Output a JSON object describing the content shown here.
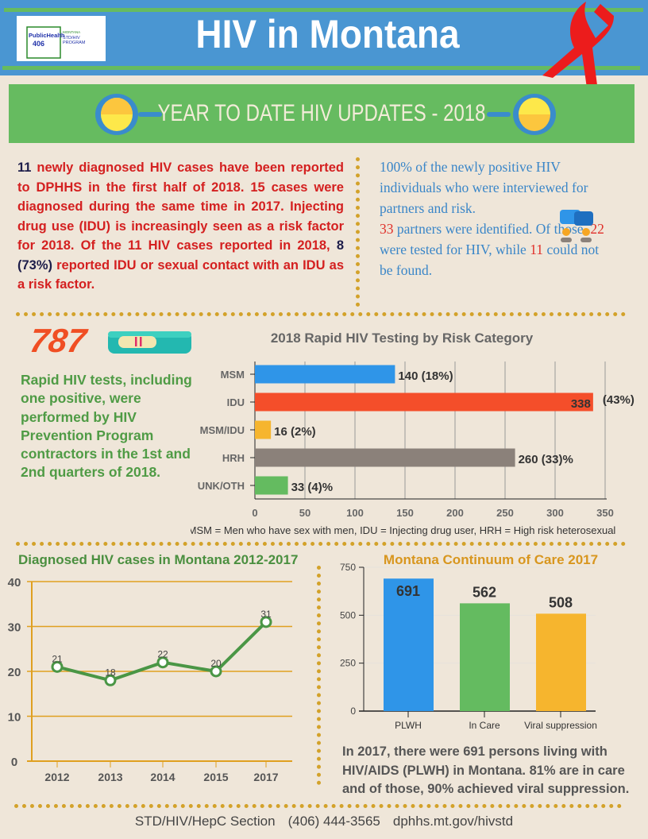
{
  "header": {
    "title": "HIV in Montana",
    "logo": {
      "text": "PublicHealth in the 406",
      "program": "MONTANA STD/HIV PROGRAM"
    },
    "ribbon_icon": "red-ribbon-icon"
  },
  "banner": {
    "title": "YEAR TO DATE HIV UPDATES - 2018"
  },
  "summary": {
    "n1": "11",
    "t1": " newly diagnosed HIV cases have been reported to DPHHS in the first half of 2018. 15 cases were diagnosed during the same time in 2017. Injecting drug use (IDU) is increasingly seen as a risk factor for 2018. Of the 11 HIV cases reported in 2018, ",
    "n2": "8 (73%)",
    "t2": " reported IDU or sexual contact with an IDU as a risk factor."
  },
  "partners": {
    "t1": "100% of the newly positive HIV individuals who were interviewed for partners and risk.",
    "n1": "33",
    "t2": " partners were identified. Of those, ",
    "n2": "22",
    "t3": " were tested for HIV, while ",
    "n3": "11",
    "t4": " could not be found."
  },
  "rapid": {
    "count": "787",
    "text": "Rapid HIV tests, including one positive, were performed by HIV Prevention Program contractors in the 1st and 2nd quarters of 2018.",
    "icon": "test-kit-icon"
  },
  "chart_data": [
    {
      "type": "bar",
      "orientation": "horizontal",
      "title": "2018 Rapid HIV Testing by Risk Category",
      "categories": [
        "MSM",
        "IDU",
        "MSM/IDU",
        "HRH",
        "UNK/OTH"
      ],
      "values": [
        140,
        338,
        16,
        260,
        33
      ],
      "labels": [
        "140 (18%)",
        "338",
        "16 (2%)",
        "260  (33)%",
        "33 (4)%"
      ],
      "extra_labels": [
        "",
        "(43%)",
        "",
        "",
        ""
      ],
      "colors": [
        "#2f95e8",
        "#f44e2a",
        "#f6b52e",
        "#8b817a",
        "#64bb60"
      ],
      "xlim": [
        0,
        350
      ],
      "xticks": [
        0,
        50,
        100,
        150,
        200,
        250,
        300,
        350
      ],
      "grid": true,
      "caption": "MSM = Men who have sex with men, IDU = Injecting drug user, HRH = High risk heterosexual"
    },
    {
      "type": "line",
      "title": "Diagnosed HIV cases in Montana 2012-2017",
      "categories": [
        "2012",
        "2013",
        "2014",
        "2015",
        "2017"
      ],
      "values": [
        21,
        18,
        22,
        20,
        31
      ],
      "ylim": [
        0,
        40
      ],
      "yticks": [
        0,
        10,
        20,
        30,
        40
      ],
      "grid": true,
      "color": "#4a9645"
    },
    {
      "type": "bar",
      "title": "Montana Continuum of Care 2017",
      "categories": [
        "PLWH",
        "In Care",
        "Viral suppression"
      ],
      "values": [
        691,
        562,
        508
      ],
      "colors": [
        "#2f95e8",
        "#64bb60",
        "#f6b52e"
      ],
      "ylim": [
        0,
        750
      ],
      "yticks": [
        0,
        250,
        500,
        750
      ],
      "grid": true
    }
  ],
  "care_text": "In 2017, there were 691 persons living with HIV/AIDS (PLWH) in Montana. 81% are in care and of those, 90% achieved viral suppression.",
  "footer": {
    "section": "STD/HIV/HepC Section",
    "phone": "(406) 444-3565",
    "url": "dphhs.mt.gov/hivstd"
  }
}
